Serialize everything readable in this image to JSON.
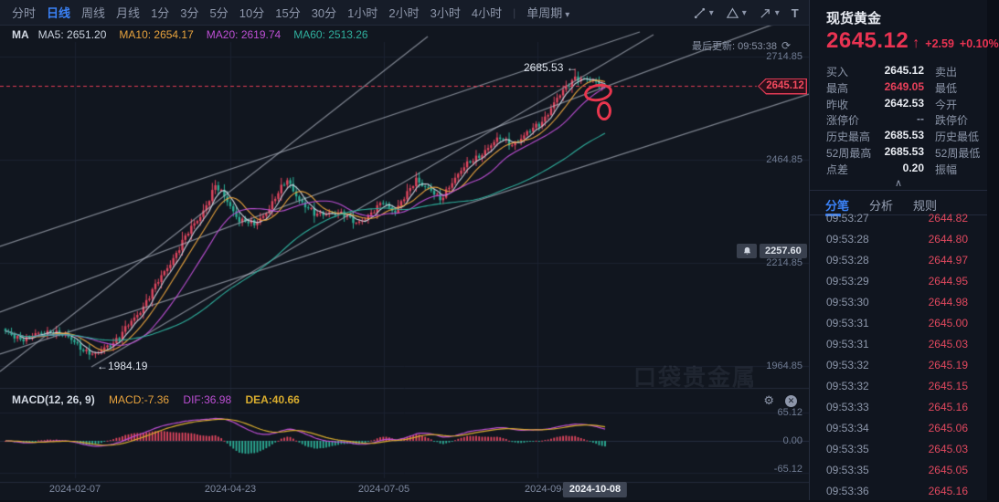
{
  "colors": {
    "up": "#e0465f",
    "down": "#2cae96",
    "accent_blue": "#3b82f7",
    "price_red": "#ea3352",
    "ma5": "#c9d1dd",
    "ma10": "#e8a33d",
    "ma20": "#bd4fd4",
    "ma60": "#2fae9c",
    "dif": "#bd4fd4",
    "dea": "#d8ac2e",
    "macd_value": "#e8a33d",
    "trend_line": "rgba(196,202,214,0.62)",
    "grid": "#1b2230"
  },
  "icons": {
    "caret_down": "▾",
    "collapse": "∧",
    "refresh": "⟳",
    "gear": "⚙",
    "close": "✕",
    "arrow_up": "↑",
    "separator": "|"
  },
  "toolbar": {
    "periods": [
      "分时",
      "日线",
      "周线",
      "月线",
      "1分",
      "3分",
      "5分",
      "10分",
      "15分",
      "30分",
      "1小时",
      "2小时",
      "3小时",
      "4小时"
    ],
    "active_period": "日线",
    "single_period_label": "单周期",
    "tool_icons": [
      "line-tool",
      "shape-tool",
      "arrow-tool",
      "text-tool",
      "gann-tool",
      "sep",
      "eye",
      "trash",
      "info",
      "sep",
      "fullscreen"
    ]
  },
  "ma_bar": {
    "prefix": "MA",
    "items": [
      {
        "text": "MA5: 2651.20",
        "color": "#c9d1dd"
      },
      {
        "text": "MA10: 2654.17",
        "color": "#e8a33d"
      },
      {
        "text": "MA20: 2619.74",
        "color": "#bd4fd4"
      },
      {
        "text": "MA60: 2513.26",
        "color": "#2fae9c"
      }
    ]
  },
  "chart": {
    "last_update": "最后更新: 09:53:38",
    "high_label": "2685.53 ←",
    "low_label": "←1984.19",
    "price_tag": "2645.12",
    "alert_value": "2257.60",
    "watermark": "口袋贵金属",
    "partial_date": "2024-09-",
    "crosshair_date": "2024-10-08"
  },
  "macd_pane": {
    "title": "MACD(12, 26, 9)",
    "macd_label": "MACD:-7.36",
    "dif_label": "DIF:36.98",
    "dea_label": "DEA:40.66"
  },
  "chart_data": {
    "type": "candlestick",
    "symbol": "现货黄金",
    "period": "日线",
    "y_axis_ticks": [
      2714.85,
      2464.85,
      2214.85,
      1964.85
    ],
    "x_axis_ticks": [
      {
        "text": "2024-02-07",
        "x": 82
      },
      {
        "text": "2024-04-23",
        "x": 252
      },
      {
        "text": "2024-07-05",
        "x": 420
      },
      {
        "text": "2024-09-",
        "x": 596
      }
    ],
    "crosshair_date_x": 651,
    "candle_count": 201,
    "price_path_keyframes": [
      [
        0,
        2045
      ],
      [
        7,
        2030
      ],
      [
        15,
        2052
      ],
      [
        23,
        2025
      ],
      [
        27,
        2000
      ],
      [
        30,
        1988
      ],
      [
        33,
        2010
      ],
      [
        38,
        2035
      ],
      [
        44,
        2090
      ],
      [
        52,
        2180
      ],
      [
        59,
        2265
      ],
      [
        65,
        2330
      ],
      [
        70,
        2400
      ],
      [
        74,
        2365
      ],
      [
        78,
        2320
      ],
      [
        83,
        2305
      ],
      [
        88,
        2350
      ],
      [
        94,
        2415
      ],
      [
        99,
        2360
      ],
      [
        103,
        2330
      ],
      [
        108,
        2340
      ],
      [
        113,
        2328
      ],
      [
        117,
        2315
      ],
      [
        122,
        2330
      ],
      [
        126,
        2365
      ],
      [
        130,
        2340
      ],
      [
        134,
        2380
      ],
      [
        137,
        2420
      ],
      [
        141,
        2395
      ],
      [
        145,
        2365
      ],
      [
        149,
        2415
      ],
      [
        153,
        2445
      ],
      [
        157,
        2470
      ],
      [
        161,
        2495
      ],
      [
        165,
        2515
      ],
      [
        169,
        2505
      ],
      [
        173,
        2520
      ],
      [
        176,
        2540
      ],
      [
        179,
        2560
      ],
      [
        182,
        2590
      ],
      [
        185,
        2620
      ],
      [
        188,
        2650
      ],
      [
        190,
        2668
      ],
      [
        193,
        2658
      ],
      [
        195,
        2654
      ],
      [
        198,
        2648
      ],
      [
        200,
        2645.12
      ]
    ],
    "key_points": {
      "low": 1984.19,
      "low_index": 30,
      "high": 2685.53,
      "high_index": 190,
      "last_close": 2645.12
    },
    "current_price": 2645.12,
    "alert_price": 2257.6,
    "ma_values": {
      "MA5": 2651.2,
      "MA10": 2654.17,
      "MA20": 2619.74,
      "MA60": 2513.26
    },
    "macd": {
      "params": [
        12,
        26,
        9
      ],
      "MACD": -7.36,
      "DIF": 36.98,
      "DEA": 40.66,
      "y_ticks": [
        65.12,
        0.0,
        -65.12
      ]
    },
    "annotations": {
      "trend_lines": [
        [
          0,
          407,
          468,
          40
        ],
        [
          100,
          402,
          715,
          38
        ],
        [
          0,
          342,
          885,
          12
        ],
        [
          0,
          270,
          700,
          35
        ],
        [
          0,
          388,
          885,
          103
        ]
      ],
      "ellipses": [
        {
          "x": 639,
          "y": 92,
          "w": 31,
          "h": 19,
          "rot": -10
        },
        {
          "x": 653,
          "y": 111,
          "w": 16,
          "h": 21,
          "rot": 0
        }
      ]
    }
  },
  "panel": {
    "title": "现货黄金",
    "price": "2645.12",
    "change": "+2.59",
    "change_pct": "+0.10%",
    "quotes": [
      {
        "label": "买入",
        "value": "2645.12",
        "label2": "卖出",
        "style": "normal"
      },
      {
        "label": "最高",
        "value": "2649.05",
        "label2": "最低",
        "style": "red"
      },
      {
        "label": "昨收",
        "value": "2642.53",
        "label2": "今开",
        "style": "normal"
      },
      {
        "label": "涨停价",
        "value": "--",
        "label2": "跌停价",
        "style": "dim"
      },
      {
        "label": "历史最高",
        "value": "2685.53",
        "label2": "历史最低",
        "style": "normal"
      },
      {
        "label": "52周最高",
        "value": "2685.53",
        "label2": "52周最低",
        "style": "normal"
      },
      {
        "label": "点差",
        "value": "0.20",
        "label2": "振幅",
        "style": "normal"
      }
    ],
    "tabs": [
      "分笔",
      "分析",
      "规则"
    ],
    "active_tab": "分笔",
    "ticks": [
      [
        "09:53:27",
        "2644.82"
      ],
      [
        "09:53:28",
        "2644.80"
      ],
      [
        "09:53:28",
        "2644.97"
      ],
      [
        "09:53:29",
        "2644.95"
      ],
      [
        "09:53:30",
        "2644.98"
      ],
      [
        "09:53:31",
        "2645.00"
      ],
      [
        "09:53:31",
        "2645.03"
      ],
      [
        "09:53:32",
        "2645.19"
      ],
      [
        "09:53:32",
        "2645.15"
      ],
      [
        "09:53:33",
        "2645.16"
      ],
      [
        "09:53:34",
        "2645.06"
      ],
      [
        "09:53:35",
        "2645.03"
      ],
      [
        "09:53:35",
        "2645.05"
      ],
      [
        "09:53:36",
        "2645.16"
      ]
    ]
  }
}
